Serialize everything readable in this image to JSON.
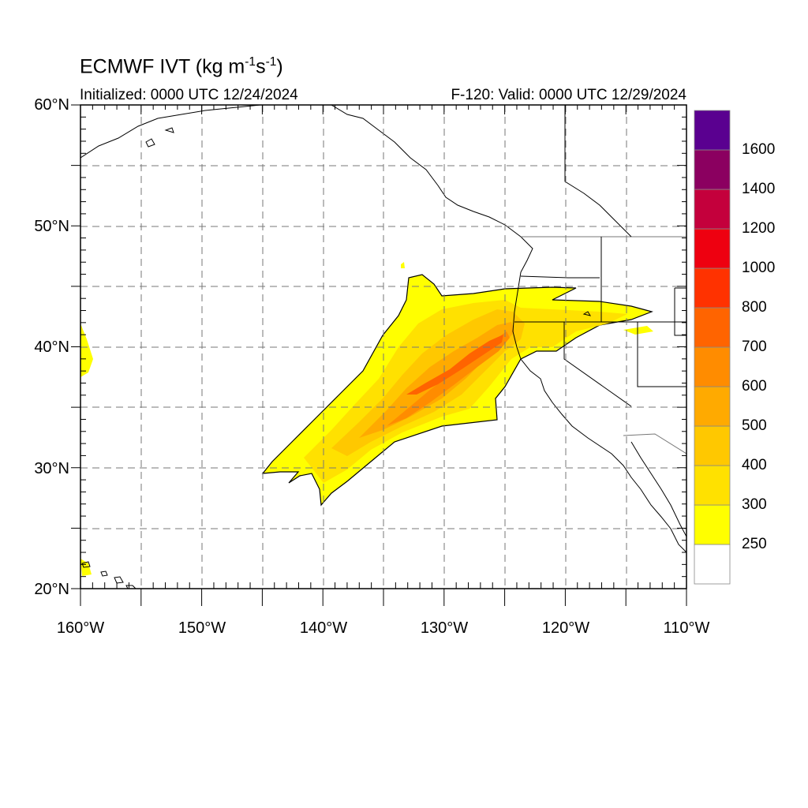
{
  "title": {
    "main": "ECMWF IVT (kg m",
    "sup1": "-1",
    "mid": "s",
    "sup2": "-1",
    "end": ")"
  },
  "subtitle": {
    "initialized": "Initialized: 0000 UTC 12/24/2024",
    "valid": "F-120: Valid: 0000 UTC 12/29/2024"
  },
  "map": {
    "lon_range": [
      -160,
      -110
    ],
    "lat_range": [
      20,
      60
    ],
    "grid": "dashed",
    "lat_ticks": [
      {
        "value": 60,
        "label": "60°N"
      },
      {
        "value": 50,
        "label": "50°N"
      },
      {
        "value": 40,
        "label": "40°N"
      },
      {
        "value": 30,
        "label": "30°N"
      },
      {
        "value": 20,
        "label": "20°N"
      }
    ],
    "lon_ticks": [
      {
        "value": -160,
        "label": "160°W"
      },
      {
        "value": -150,
        "label": "150°W"
      },
      {
        "value": -140,
        "label": "140°W"
      },
      {
        "value": -130,
        "label": "130°W"
      },
      {
        "value": -120,
        "label": "120°W"
      },
      {
        "value": -110,
        "label": "110°W"
      }
    ]
  },
  "colorbar": {
    "levels": [
      "250",
      "300",
      "400",
      "500",
      "600",
      "700",
      "800",
      "1000",
      "1200",
      "1400",
      "1600"
    ],
    "colors": [
      "#ffffff",
      "#ffff00",
      "#ffe100",
      "#ffc800",
      "#ffaa00",
      "#ff8c00",
      "#ff6400",
      "#ff3200",
      "#ee0010",
      "#c4003c",
      "#8b0060",
      "#5a0090"
    ]
  },
  "ivt_field": {
    "description_free": true,
    "core_axis": [
      [
        -136,
        33
      ],
      [
        -132,
        35.5
      ],
      [
        -128,
        38.5
      ],
      [
        -125,
        41
      ]
    ],
    "core_peak_level": "800"
  }
}
